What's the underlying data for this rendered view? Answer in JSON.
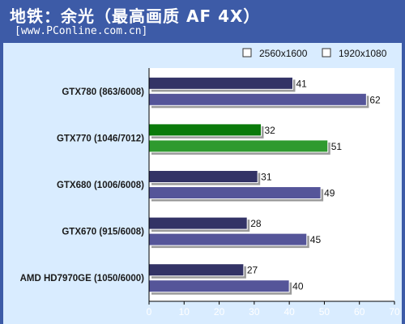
{
  "header": {
    "title": "地铁：余光（最高画质 AF 4X）",
    "subtitle": "[www.PConline.com.cn]"
  },
  "colors": {
    "background": "#3d5ba7",
    "plot_area": "#ffffff",
    "bar_dark": "#333366",
    "bar_light": "#555599",
    "bar_green_dark": "#0a7a0a",
    "bar_green_light": "#2f9a2f"
  },
  "chart_data": {
    "type": "bar",
    "orientation": "horizontal",
    "title": "地铁：余光（最高画质 AF 4X）",
    "categories": [
      "GTX780 (863/6008)",
      "GTX770 (1046/7012)",
      "GTX680 (1006/6008)",
      "GTX670 (915/6008)",
      "AMD HD7970GE (1050/6000)"
    ],
    "series": [
      {
        "name": "2560x1600",
        "values": [
          41,
          32,
          31,
          28,
          27
        ]
      },
      {
        "name": "1920x1080",
        "values": [
          62,
          51,
          49,
          45,
          40
        ]
      }
    ],
    "highlight_category": "GTX770 (1046/7012)",
    "xlim": [
      0,
      70
    ],
    "xticks": [
      "0",
      "10",
      "20",
      "30",
      "40",
      "50",
      "60",
      "70"
    ],
    "grid": false,
    "legend": "top-right",
    "data_labels": true
  }
}
